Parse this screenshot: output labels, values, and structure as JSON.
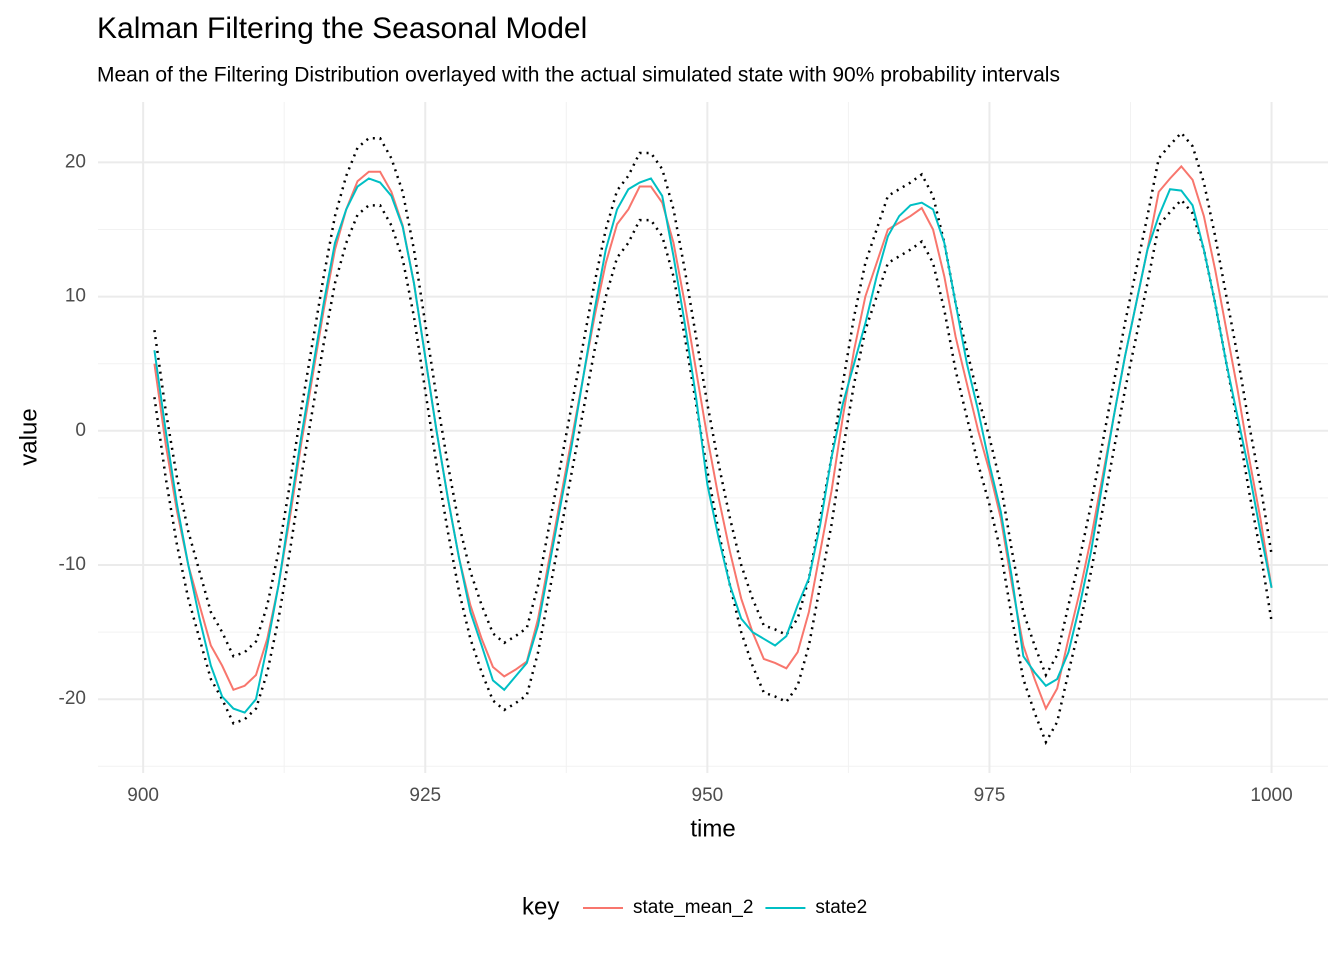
{
  "chart_data": {
    "type": "line",
    "title": "Kalman Filtering the Seasonal Model",
    "subtitle": "Mean of the Filtering Distribution overlayed with the actual simulated state with 90% probability intervals",
    "xlabel": "time",
    "ylabel": "value",
    "legend_title": "key",
    "legend": "bottom",
    "grid": true,
    "xlim": [
      896,
      1005
    ],
    "ylim": [
      -25.5,
      24.5
    ],
    "xticks": [
      900,
      925,
      950,
      975,
      1000
    ],
    "yticks": [
      -20,
      -10,
      0,
      10,
      20
    ],
    "xminor": [
      912.5,
      937.5,
      962.5,
      987.5
    ],
    "yminor": [
      -25,
      -15,
      -5,
      5,
      15
    ],
    "x": [
      901,
      902,
      903,
      904,
      905,
      906,
      907,
      908,
      909,
      910,
      911,
      912,
      913,
      914,
      915,
      916,
      917,
      918,
      919,
      920,
      921,
      922,
      923,
      924,
      925,
      926,
      927,
      928,
      929,
      930,
      931,
      932,
      933,
      934,
      935,
      936,
      937,
      938,
      939,
      940,
      941,
      942,
      943,
      944,
      945,
      946,
      947,
      948,
      949,
      950,
      951,
      952,
      953,
      954,
      955,
      956,
      957,
      958,
      959,
      960,
      961,
      962,
      963,
      964,
      965,
      966,
      967,
      968,
      969,
      970,
      971,
      972,
      973,
      974,
      975,
      976,
      977,
      978,
      979,
      980,
      981,
      982,
      983,
      984,
      985,
      986,
      987,
      988,
      989,
      990,
      991,
      992,
      993,
      994,
      995,
      996,
      997,
      998,
      999,
      1000
    ],
    "series": [
      {
        "color": "#000000",
        "dash": "dotted",
        "values": [
          7.5,
          1.5,
          -3.5,
          -7.5,
          -10.5,
          -13.5,
          -15,
          -16.8,
          -16.5,
          -15.7,
          -13,
          -9,
          -4,
          1.5,
          6.5,
          11.5,
          16,
          19,
          21.1,
          21.8,
          21.8,
          20.3,
          17.8,
          13.5,
          8,
          2.5,
          -2.5,
          -7,
          -10.5,
          -13,
          -15.1,
          -15.8,
          -15.3,
          -14.7,
          -11.5,
          -7,
          -2.5,
          2,
          6.5,
          11,
          15,
          17.9,
          19,
          20.7,
          20.7,
          19.5,
          16.5,
          12,
          7,
          2,
          -2.5,
          -6.5,
          -10,
          -12.5,
          -14.5,
          -14.8,
          -15.2,
          -14,
          -11,
          -6.5,
          -2,
          3.5,
          8.5,
          12.5,
          15,
          17.5,
          18,
          18.5,
          19.1,
          17.5,
          14,
          9.5,
          6,
          2.5,
          -0.5,
          -4,
          -9,
          -13.5,
          -16,
          -18.2,
          -16.7,
          -13,
          -9.5,
          -5.5,
          -1,
          3.5,
          8,
          12,
          16,
          20.3,
          21.3,
          22.2,
          21.2,
          18.5,
          14.5,
          10,
          5.5,
          0.5,
          -4,
          -9.2
        ]
      },
      {
        "color": "#000000",
        "dash": "dotted",
        "values": [
          2.5,
          -3.5,
          -8.5,
          -12.5,
          -15.5,
          -18.5,
          -20,
          -21.8,
          -21.5,
          -20.7,
          -18,
          -14,
          -9,
          -3.5,
          1.5,
          6.5,
          11,
          14,
          16.1,
          16.8,
          16.8,
          15.3,
          12.8,
          8.5,
          3,
          -2.5,
          -7.5,
          -12,
          -15.5,
          -18,
          -20.1,
          -20.8,
          -20.3,
          -19.7,
          -16.5,
          -12,
          -7.5,
          -3,
          1.5,
          6,
          10,
          12.9,
          14,
          15.7,
          15.7,
          14.5,
          11.5,
          7,
          2,
          -3,
          -7.5,
          -11.5,
          -15,
          -17.5,
          -19.5,
          -19.8,
          -20.2,
          -19,
          -16,
          -11.5,
          -7,
          -1.5,
          3.5,
          7.5,
          10,
          12.5,
          13,
          13.5,
          14.1,
          12.5,
          9,
          4.5,
          1,
          -2.5,
          -5.5,
          -9,
          -14,
          -18.5,
          -21,
          -23.2,
          -21.7,
          -18,
          -14.5,
          -10.5,
          -6,
          -1.5,
          3,
          7,
          11,
          15.3,
          16.3,
          17.2,
          16.2,
          13.5,
          9.5,
          5,
          0.5,
          -4.5,
          -9,
          -14.2
        ]
      },
      {
        "name": "state_mean_2",
        "color": "#F8766D",
        "values": [
          5,
          -1,
          -6,
          -10,
          -13,
          -16,
          -17.5,
          -19.3,
          -19,
          -18.2,
          -15.5,
          -11.5,
          -6.5,
          -1,
          4,
          9,
          13.5,
          16.5,
          18.6,
          19.3,
          19.3,
          17.8,
          15.3,
          11,
          5.5,
          0,
          -5,
          -9.5,
          -13,
          -15.5,
          -17.6,
          -18.3,
          -17.8,
          -17.2,
          -14,
          -9.5,
          -5,
          -0.5,
          4,
          8.5,
          12.5,
          15.4,
          16.5,
          18.2,
          18.2,
          17,
          14,
          9.5,
          4.5,
          -0.5,
          -5,
          -9,
          -12.5,
          -15,
          -17,
          -17.3,
          -17.7,
          -16.5,
          -13.5,
          -9,
          -4.5,
          1,
          6,
          10,
          12.5,
          15,
          15.5,
          16,
          16.6,
          15,
          11.5,
          7,
          3.5,
          0,
          -3,
          -6.5,
          -11.5,
          -16,
          -18.5,
          -20.7,
          -19.2,
          -15.5,
          -12,
          -8,
          -3.5,
          1,
          5.5,
          9.5,
          13.5,
          17.8,
          18.8,
          19.7,
          18.7,
          16,
          12,
          7.5,
          3,
          -2,
          -6.5,
          -11.7
        ]
      },
      {
        "name": "state2",
        "color": "#00BFC4",
        "values": [
          6,
          0,
          -5.5,
          -10,
          -14,
          -17.5,
          -19.8,
          -20.7,
          -21,
          -20,
          -16,
          -11.5,
          -6,
          -0.5,
          4.5,
          9.5,
          14,
          16.5,
          18.2,
          18.8,
          18.5,
          17.5,
          15.2,
          11,
          5.5,
          0,
          -5,
          -9.5,
          -13.5,
          -16,
          -18.6,
          -19.3,
          -18.3,
          -17.3,
          -14.5,
          -10,
          -5.5,
          -1,
          4,
          9,
          13.5,
          16.5,
          18,
          18.5,
          18.8,
          17.5,
          13,
          8,
          2.5,
          -4,
          -8,
          -11.5,
          -14,
          -15,
          -15.5,
          -16,
          -15.3,
          -13,
          -11,
          -7,
          -2,
          2,
          5,
          8,
          11.5,
          14.5,
          16,
          16.8,
          17,
          16.5,
          14,
          9.5,
          5,
          1.5,
          -2.5,
          -6,
          -11,
          -16.8,
          -18,
          -19,
          -18.5,
          -16.5,
          -13,
          -9,
          -4,
          1,
          5.5,
          9.5,
          13.5,
          16,
          18,
          17.9,
          16.8,
          13.5,
          9.5,
          5,
          1,
          -3,
          -7.5,
          -11.7
        ]
      }
    ]
  }
}
